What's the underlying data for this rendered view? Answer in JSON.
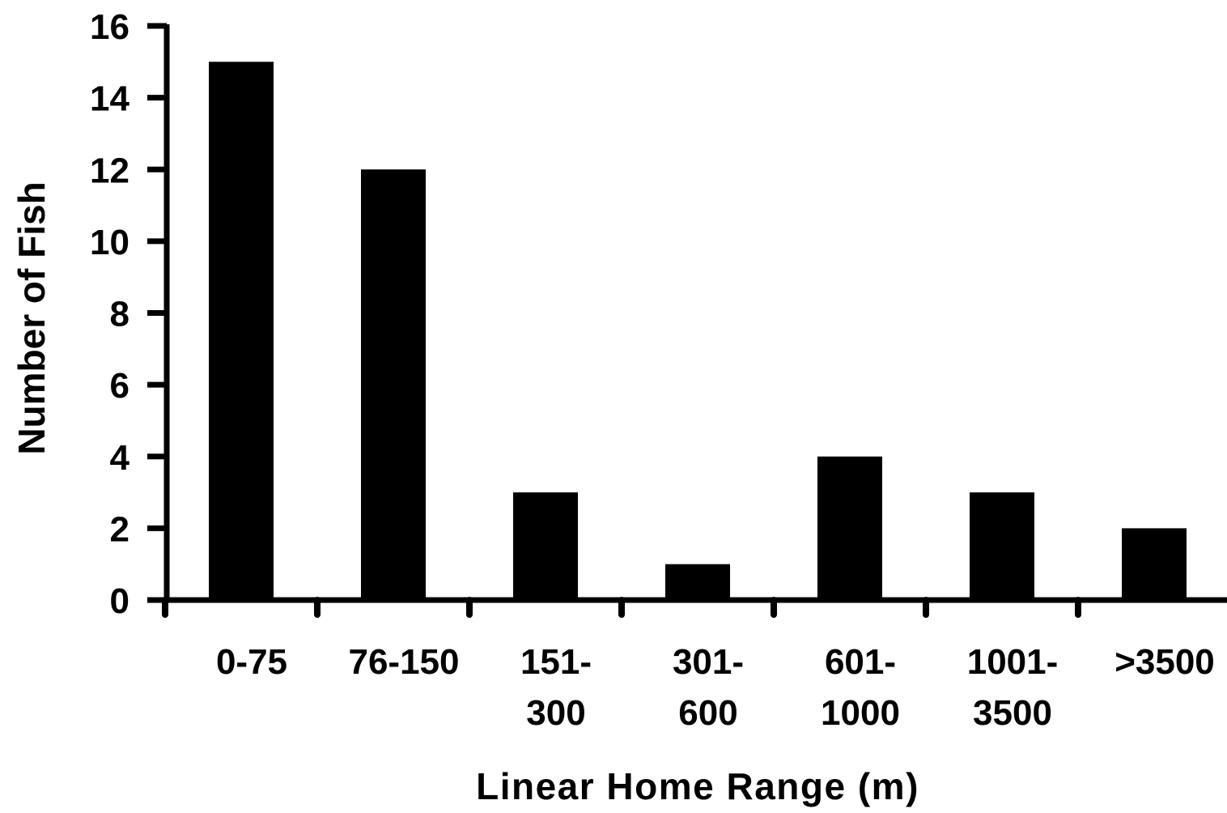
{
  "chart_data": {
    "type": "bar",
    "title": "",
    "xlabel": "Linear Home Range (m)",
    "ylabel": "Number of Fish",
    "categories": [
      [
        "0-75"
      ],
      [
        "76-150"
      ],
      [
        "151-",
        "300"
      ],
      [
        "301-",
        "600"
      ],
      [
        "601-",
        "1000"
      ],
      [
        "1001-",
        "3500"
      ],
      [
        ">3500"
      ]
    ],
    "values": [
      15,
      12,
      3,
      1,
      4,
      3,
      2
    ],
    "ylim": [
      0,
      16
    ],
    "yticks": [
      0,
      2,
      4,
      6,
      8,
      10,
      12,
      14,
      16
    ],
    "grid": false,
    "legend": "none",
    "bar_color": "#000000"
  }
}
